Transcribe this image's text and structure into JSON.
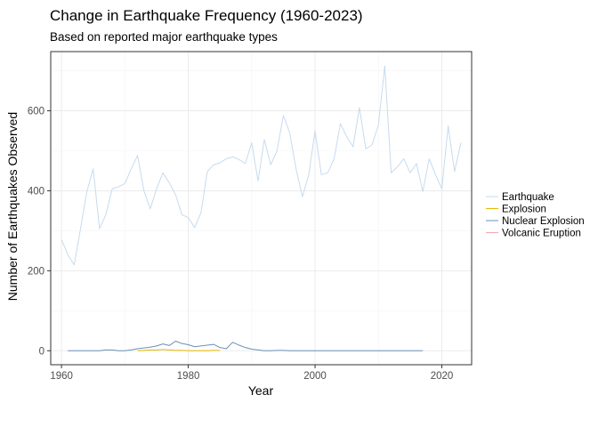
{
  "chart_data": {
    "type": "line",
    "title": "Change in Earthquake Frequency (1960-2023)",
    "subtitle": "Based on reported major earthquake types",
    "xlabel": "Year",
    "ylabel": "Number of Earthquakes Observed",
    "xlim": [
      1958.3,
      2024.7
    ],
    "ylim": [
      -35,
      748
    ],
    "x_ticks": [
      1960,
      1980,
      2000,
      2020
    ],
    "y_ticks": [
      0,
      200,
      400,
      600
    ],
    "grid": true,
    "legend_position": "right",
    "series": [
      {
        "name": "Earthquake",
        "color": "#c6dbef",
        "x": [
          1960,
          1961,
          1962,
          1963,
          1964,
          1965,
          1966,
          1967,
          1968,
          1969,
          1970,
          1971,
          1972,
          1973,
          1974,
          1975,
          1976,
          1977,
          1978,
          1979,
          1980,
          1981,
          1982,
          1983,
          1984,
          1985,
          1986,
          1987,
          1988,
          1989,
          1990,
          1991,
          1992,
          1993,
          1994,
          1995,
          1996,
          1997,
          1998,
          1999,
          2000,
          2001,
          2002,
          2003,
          2004,
          2005,
          2006,
          2007,
          2008,
          2009,
          2010,
          2011,
          2012,
          2013,
          2014,
          2015,
          2016,
          2017,
          2018,
          2019,
          2020,
          2021,
          2022,
          2023
        ],
        "y": [
          278,
          240,
          215,
          305,
          398,
          455,
          305,
          340,
          405,
          410,
          418,
          455,
          488,
          400,
          355,
          405,
          445,
          420,
          390,
          340,
          333,
          308,
          345,
          448,
          465,
          470,
          480,
          485,
          478,
          468,
          520,
          425,
          528,
          465,
          500,
          588,
          545,
          455,
          385,
          440,
          550,
          440,
          445,
          480,
          568,
          535,
          510,
          608,
          505,
          515,
          565,
          712,
          445,
          460,
          480,
          445,
          468,
          398,
          480,
          440,
          405,
          562,
          448,
          520
        ]
      },
      {
        "name": "Explosion",
        "color": "#e6b800",
        "x": [
          1972,
          1973,
          1974,
          1975,
          1976,
          1977,
          1978,
          1979,
          1980,
          1981,
          1982,
          1983,
          1984,
          1985
        ],
        "y": [
          0,
          1,
          2,
          2,
          3,
          2,
          1,
          1,
          0,
          0,
          0,
          0,
          1,
          1
        ]
      },
      {
        "name": "Nuclear Explosion",
        "color": "#6b8fb8",
        "x": [
          1961,
          1962,
          1963,
          1964,
          1965,
          1966,
          1967,
          1968,
          1969,
          1970,
          1971,
          1972,
          1973,
          1974,
          1975,
          1976,
          1977,
          1978,
          1979,
          1980,
          1981,
          1982,
          1983,
          1984,
          1985,
          1986,
          1987,
          1988,
          1989,
          1990,
          1991,
          1992,
          1993,
          1994,
          1995,
          1996,
          1997,
          1998,
          1999,
          2000,
          2001,
          2002,
          2003,
          2004,
          2005,
          2006,
          2007,
          2008,
          2009,
          2010,
          2011,
          2012,
          2013,
          2014,
          2015,
          2016,
          2017
        ],
        "y": [
          0,
          0,
          0,
          0,
          0,
          0,
          2,
          2,
          0,
          0,
          2,
          5,
          7,
          9,
          12,
          17,
          13,
          24,
          18,
          15,
          10,
          12,
          14,
          16,
          8,
          5,
          21,
          14,
          8,
          4,
          2,
          0,
          0,
          1,
          1,
          0,
          0,
          0,
          0,
          0,
          0,
          0,
          0,
          0,
          0,
          0,
          0,
          0,
          0,
          0,
          0,
          0,
          0,
          0,
          0,
          0,
          0
        ]
      },
      {
        "name": "Volcanic Eruption",
        "color": "#f4a6b0",
        "x": [],
        "y": []
      }
    ]
  }
}
